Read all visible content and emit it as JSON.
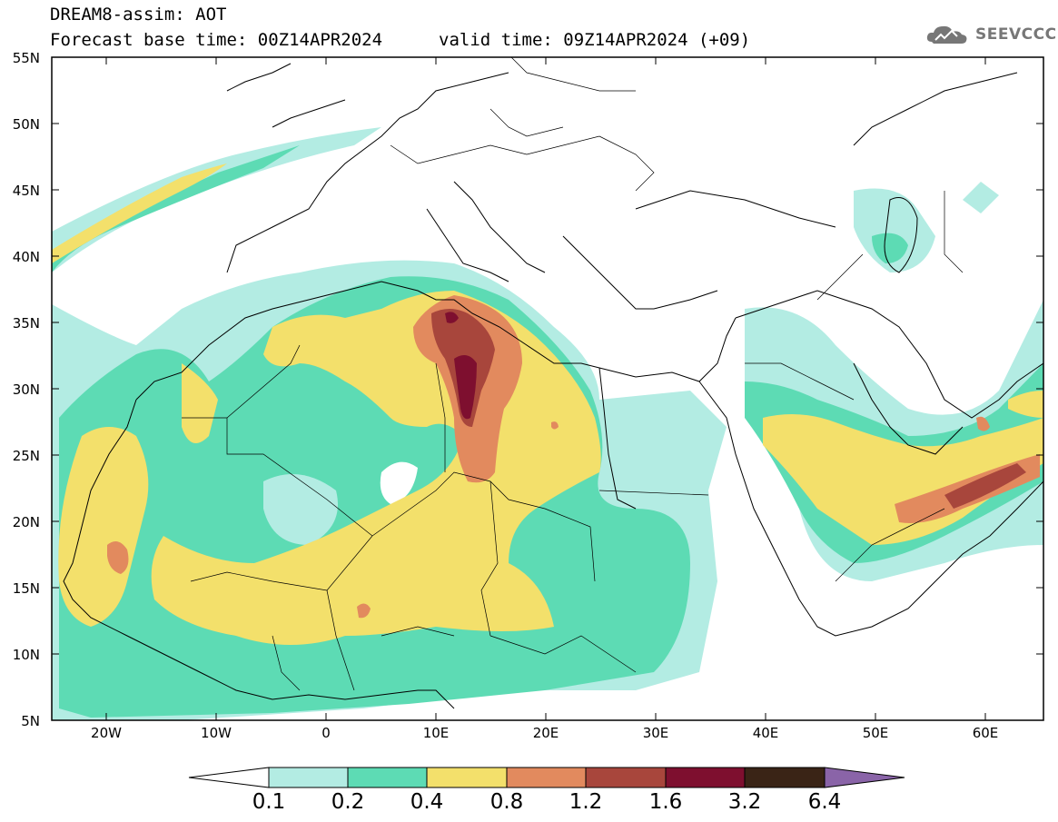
{
  "header": {
    "title": "DREAM8-assim: AOT",
    "base_time": "Forecast base time: 00Z14APR2024",
    "valid_time": "valid time: 09Z14APR2024 (+09)",
    "logo_text": "SEEVCCC"
  },
  "axes": {
    "lat_labels": [
      "55N",
      "50N",
      "45N",
      "40N",
      "35N",
      "30N",
      "25N",
      "20N",
      "15N",
      "10N",
      "5N"
    ],
    "lon_labels": [
      "20W",
      "10W",
      "0",
      "10E",
      "20E",
      "30E",
      "40E",
      "50E",
      "60E"
    ]
  },
  "legend": {
    "levels": [
      "0.1",
      "0.2",
      "0.4",
      "0.8",
      "1.2",
      "1.6",
      "3.2",
      "6.4"
    ],
    "colors": [
      "#b3ece3",
      "#5ddbb4",
      "#f3e06b",
      "#e28a5e",
      "#a8463c",
      "#7e0f2f",
      "#3a2416",
      "#8a64a8"
    ]
  },
  "map": {
    "region": "North Africa, Middle East, Europe",
    "lat_range": [
      "5N",
      "55N"
    ],
    "lon_range": [
      "25W",
      "65E"
    ]
  }
}
